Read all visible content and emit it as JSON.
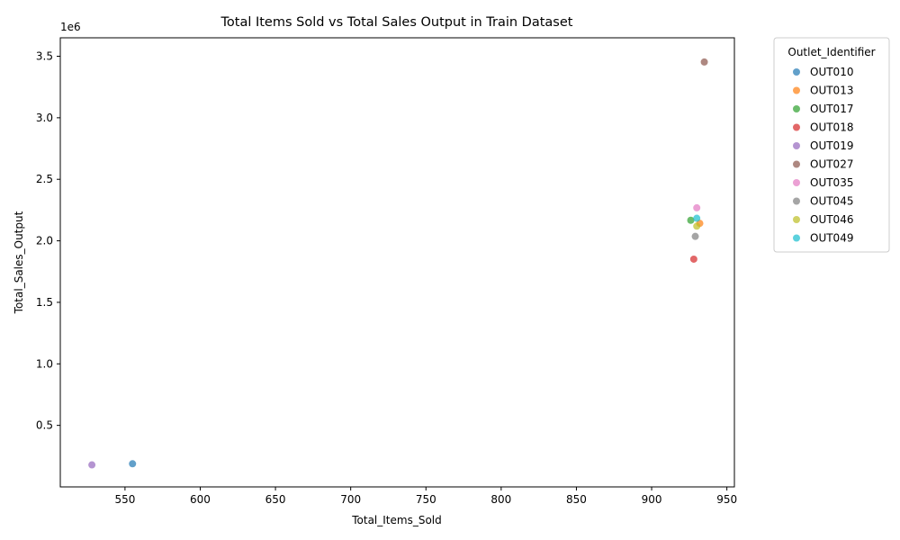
{
  "chart_data": {
    "type": "scatter",
    "title": "Total Items Sold vs Total Sales Output in Train Dataset",
    "xlabel": "Total_Items_Sold",
    "ylabel": "Total_Sales_Output",
    "y_offset_label": "1e6",
    "xlim": [
      507,
      955
    ],
    "ylim": [
      0,
      3.65
    ],
    "x_ticks": [
      550,
      600,
      650,
      700,
      750,
      800,
      850,
      900,
      950
    ],
    "y_ticks": [
      0.5,
      1.0,
      1.5,
      2.0,
      2.5,
      3.0,
      3.5
    ],
    "y_tick_labels": [
      "0.5",
      "1.0",
      "1.5",
      "2.0",
      "2.5",
      "3.0",
      "3.5"
    ],
    "grid": false,
    "legend_title": "Outlet_Identifier",
    "legend_position": "outside right",
    "series": [
      {
        "name": "OUT010",
        "color": "#1f77b4",
        "x": 555,
        "y": 0.188
      },
      {
        "name": "OUT013",
        "color": "#ff7f0e",
        "x": 932,
        "y": 2.142
      },
      {
        "name": "OUT017",
        "color": "#2ca02c",
        "x": 926,
        "y": 2.167
      },
      {
        "name": "OUT018",
        "color": "#d62728",
        "x": 928,
        "y": 1.851
      },
      {
        "name": "OUT019",
        "color": "#9467bd",
        "x": 528,
        "y": 0.179
      },
      {
        "name": "OUT027",
        "color": "#8c564b",
        "x": 935,
        "y": 3.453
      },
      {
        "name": "OUT035",
        "color": "#e377c2",
        "x": 930,
        "y": 2.268
      },
      {
        "name": "OUT045",
        "color": "#7f7f7f",
        "x": 929,
        "y": 2.036
      },
      {
        "name": "OUT046",
        "color": "#bcbd22",
        "x": 930,
        "y": 2.119
      },
      {
        "name": "OUT049",
        "color": "#17becf",
        "x": 930,
        "y": 2.183
      }
    ]
  }
}
